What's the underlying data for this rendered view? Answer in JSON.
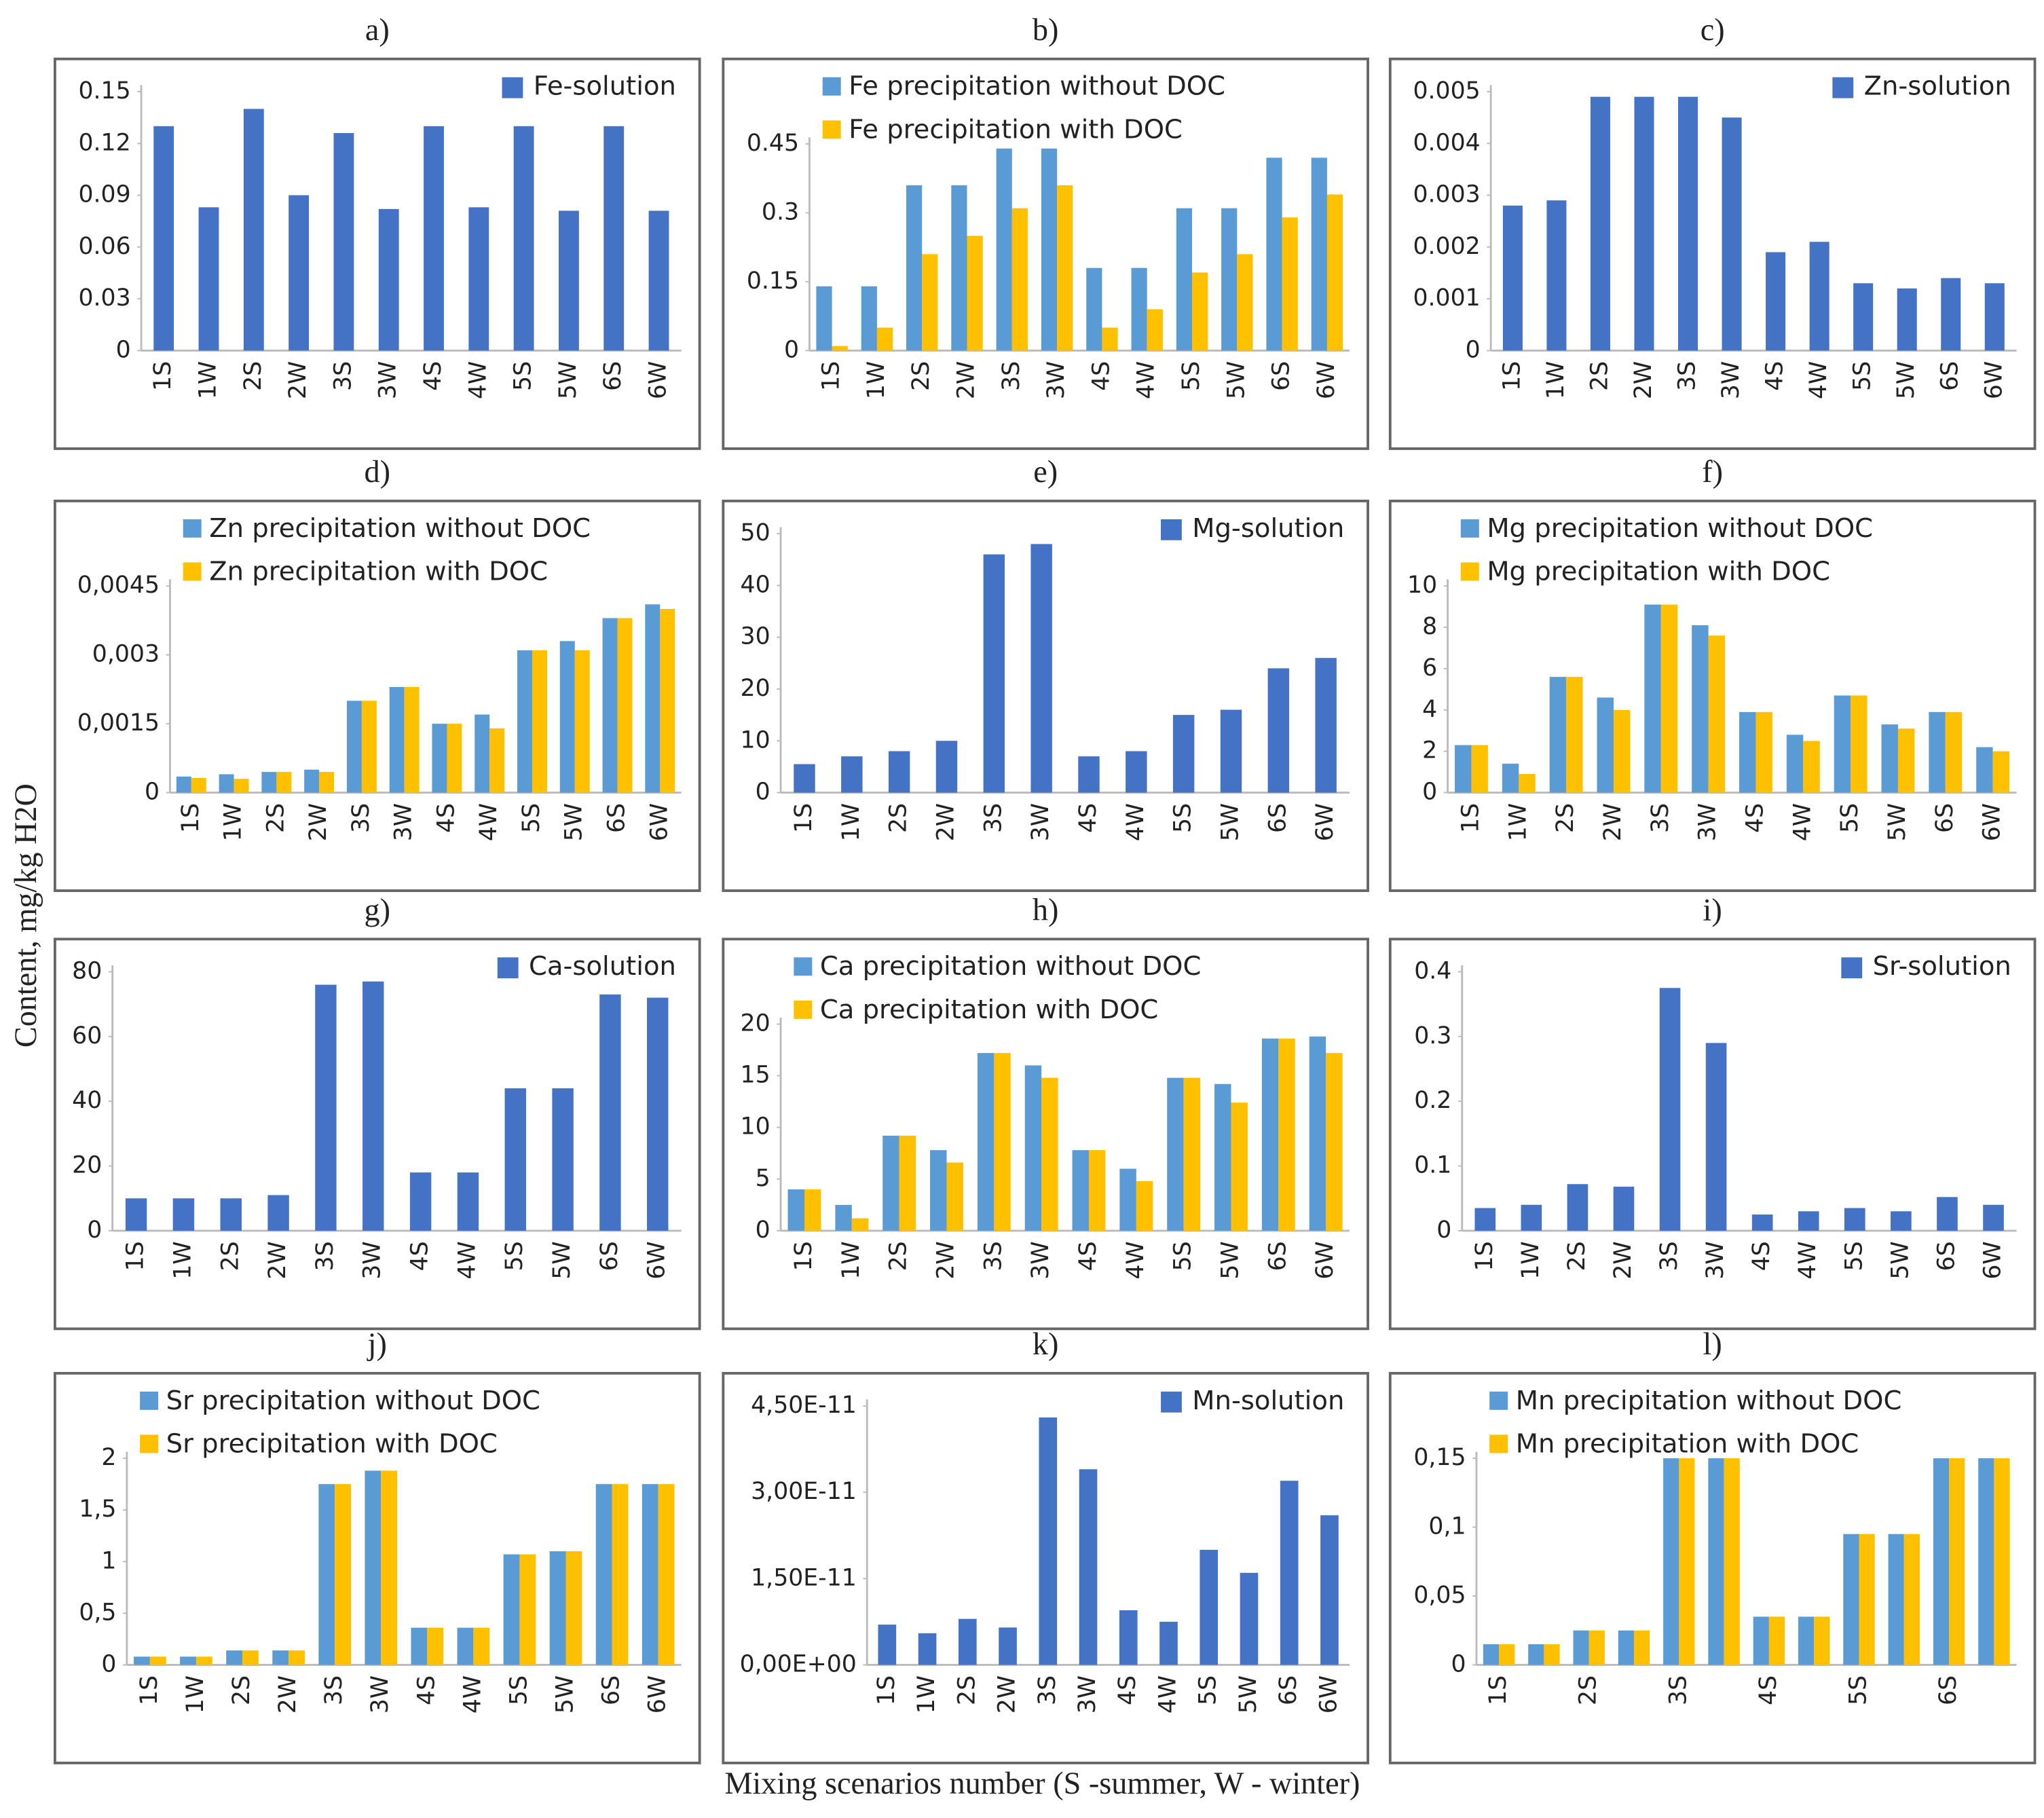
{
  "ylabel": "Content, mg/kg H2O",
  "xlabel": "Mixing scenarios number (S -summer, W - winter)",
  "chart_data": [
    {
      "type": "bar",
      "title": "a)",
      "categories": [
        "1S",
        "1W",
        "2S",
        "2W",
        "3S",
        "3W",
        "4S",
        "4W",
        "5S",
        "5W",
        "6S",
        "6W"
      ],
      "legend": "upper right",
      "series": [
        {
          "name": "Fe-solution",
          "color": "#4472c4",
          "values": [
            0.13,
            0.083,
            0.14,
            0.09,
            0.126,
            0.082,
            0.13,
            0.083,
            0.13,
            0.081,
            0.13,
            0.081
          ]
        }
      ],
      "ylim": [
        0,
        0.15
      ],
      "yticks": [
        0,
        0.03,
        0.06,
        0.09,
        0.12,
        0.15
      ]
    },
    {
      "type": "bar",
      "title": "b)",
      "categories": [
        "1S",
        "1W",
        "2S",
        "2W",
        "3S",
        "3W",
        "4S",
        "4W",
        "5S",
        "5W",
        "6S",
        "6W"
      ],
      "legend": "upper center",
      "series": [
        {
          "name": "Fe precipitation without DOC",
          "color": "#5b9bd5",
          "values": [
            0.14,
            0.14,
            0.36,
            0.36,
            0.44,
            0.44,
            0.18,
            0.18,
            0.31,
            0.31,
            0.42,
            0.42
          ]
        },
        {
          "name": "Fe precipitation with DOC",
          "color": "#ffc000",
          "values": [
            0.01,
            0.05,
            0.21,
            0.25,
            0.31,
            0.36,
            0.05,
            0.09,
            0.17,
            0.21,
            0.29,
            0.34
          ]
        }
      ],
      "ylim": [
        0,
        0.45
      ],
      "yticks": [
        0,
        0.15,
        0.3,
        0.45
      ]
    },
    {
      "type": "bar",
      "title": "c)",
      "categories": [
        "1S",
        "1W",
        "2S",
        "2W",
        "3S",
        "3W",
        "4S",
        "4W",
        "5S",
        "5W",
        "6S",
        "6W"
      ],
      "legend": "upper right",
      "series": [
        {
          "name": "Zn-solution",
          "color": "#4472c4",
          "values": [
            0.0028,
            0.0029,
            0.0049,
            0.0049,
            0.0049,
            0.0045,
            0.0019,
            0.0021,
            0.0013,
            0.0012,
            0.0014,
            0.0013
          ]
        }
      ],
      "ylim": [
        0,
        0.005
      ],
      "yticks": [
        0,
        0.001,
        0.002,
        0.003,
        0.004,
        0.005
      ]
    },
    {
      "type": "bar",
      "title": "d)",
      "categories": [
        "1S",
        "1W",
        "2S",
        "2W",
        "3S",
        "3W",
        "4S",
        "4W",
        "5S",
        "5W",
        "6S",
        "6W"
      ],
      "legend": "upper center",
      "series": [
        {
          "name": "Zn precipitation without DOC",
          "color": "#5b9bd5",
          "values": [
            0.00035,
            0.0004,
            0.00045,
            0.0005,
            0.002,
            0.0023,
            0.0015,
            0.0017,
            0.0031,
            0.0033,
            0.0038,
            0.0041
          ]
        },
        {
          "name": "Zn precipitation with DOC",
          "color": "#ffc000",
          "values": [
            0.00032,
            0.0003,
            0.00045,
            0.00045,
            0.002,
            0.0023,
            0.0015,
            0.0014,
            0.0031,
            0.0031,
            0.0038,
            0.004
          ]
        }
      ],
      "ylim": [
        0,
        0.0045
      ],
      "yticks": [
        0,
        {
          "value": 0.0015,
          "label": "0,0015"
        },
        {
          "value": 0.003,
          "label": "0,003"
        },
        {
          "value": 0.0045,
          "label": "0,0045"
        }
      ]
    },
    {
      "type": "bar",
      "title": "e)",
      "categories": [
        "1S",
        "1W",
        "2S",
        "2W",
        "3S",
        "3W",
        "4S",
        "4W",
        "5S",
        "5W",
        "6S",
        "6W"
      ],
      "legend": "upper right",
      "series": [
        {
          "name": "Mg-solution",
          "color": "#4472c4",
          "values": [
            5.5,
            7,
            8,
            10,
            46,
            48,
            7,
            8,
            15,
            16,
            24,
            26
          ]
        }
      ],
      "ylim": [
        0,
        50
      ],
      "yticks": [
        0,
        10,
        20,
        30,
        40,
        50
      ]
    },
    {
      "type": "bar",
      "title": "f)",
      "categories": [
        "1S",
        "1W",
        "2S",
        "2W",
        "3S",
        "3W",
        "4S",
        "4W",
        "5S",
        "5W",
        "6S",
        "6W"
      ],
      "legend": "upper center",
      "series": [
        {
          "name": "Mg precipitation without DOC",
          "color": "#5b9bd5",
          "values": [
            2.3,
            1.4,
            5.6,
            4.6,
            9.1,
            8.1,
            3.9,
            2.8,
            4.7,
            3.3,
            3.9,
            2.2
          ]
        },
        {
          "name": "Mg precipitation with DOC",
          "color": "#ffc000",
          "values": [
            2.3,
            0.9,
            5.6,
            4,
            9.1,
            7.6,
            3.9,
            2.5,
            4.7,
            3.1,
            3.9,
            2
          ]
        }
      ],
      "ylim": [
        0,
        10
      ],
      "yticks": [
        0,
        2,
        4,
        6,
        8,
        10
      ]
    },
    {
      "type": "bar",
      "title": "g)",
      "categories": [
        "1S",
        "1W",
        "2S",
        "2W",
        "3S",
        "3W",
        "4S",
        "4W",
        "5S",
        "5W",
        "6S",
        "6W"
      ],
      "legend": "upper right",
      "series": [
        {
          "name": "Ca-solution",
          "color": "#4472c4",
          "values": [
            10,
            10,
            10,
            11,
            76,
            77,
            18,
            18,
            44,
            44,
            73,
            72
          ]
        }
      ],
      "ylim": [
        0,
        80
      ],
      "yticks": [
        0,
        20,
        40,
        60,
        80
      ]
    },
    {
      "type": "bar",
      "title": "h)",
      "categories": [
        "1S",
        "1W",
        "2S",
        "2W",
        "3S",
        "3W",
        "4S",
        "4W",
        "5S",
        "5W",
        "6S",
        "6W"
      ],
      "legend": "upper center",
      "series": [
        {
          "name": "Ca precipitation without DOC",
          "color": "#5b9bd5",
          "values": [
            4,
            2.5,
            9.2,
            7.8,
            17.2,
            16,
            7.8,
            6,
            14.8,
            14.2,
            18.6,
            18.8
          ]
        },
        {
          "name": "Ca precipitation with DOC",
          "color": "#ffc000",
          "values": [
            4,
            1.2,
            9.2,
            6.6,
            17.2,
            14.8,
            7.8,
            4.8,
            14.8,
            12.4,
            18.6,
            17.2
          ]
        }
      ],
      "ylim": [
        0,
        20
      ],
      "yticks": [
        0,
        5,
        10,
        15,
        20
      ]
    },
    {
      "type": "bar",
      "title": "i)",
      "categories": [
        "1S",
        "1W",
        "2S",
        "2W",
        "3S",
        "3W",
        "4S",
        "4W",
        "5S",
        "5W",
        "6S",
        "6W"
      ],
      "legend": "upper right",
      "series": [
        {
          "name": "Sr-solution",
          "color": "#4472c4",
          "values": [
            0.035,
            0.04,
            0.072,
            0.068,
            0.375,
            0.29,
            0.025,
            0.03,
            0.035,
            0.03,
            0.052,
            0.04
          ]
        }
      ],
      "ylim": [
        0,
        0.4
      ],
      "yticks": [
        0,
        0.1,
        0.2,
        0.3,
        0.4
      ]
    },
    {
      "type": "bar",
      "title": "j)",
      "categories": [
        "1S",
        "1W",
        "2S",
        "2W",
        "3S",
        "3W",
        "4S",
        "4W",
        "5S",
        "5W",
        "6S",
        "6W"
      ],
      "legend": "upper center",
      "series": [
        {
          "name": "Sr precipitation without DOC",
          "color": "#5b9bd5",
          "values": [
            0.08,
            0.08,
            0.14,
            0.14,
            1.75,
            1.88,
            0.36,
            0.36,
            1.07,
            1.1,
            1.75,
            1.75
          ]
        },
        {
          "name": "Sr precipitation with DOC",
          "color": "#ffc000",
          "values": [
            0.08,
            0.08,
            0.14,
            0.14,
            1.75,
            1.88,
            0.36,
            0.36,
            1.07,
            1.1,
            1.75,
            1.75
          ]
        }
      ],
      "ylim": [
        0,
        2
      ],
      "yticks": [
        0,
        {
          "value": 0.5,
          "label": "0,5"
        },
        1,
        {
          "value": 1.5,
          "label": "1,5"
        },
        2
      ]
    },
    {
      "type": "bar",
      "title": "k)",
      "categories": [
        "1S",
        "1W",
        "2S",
        "2W",
        "3S",
        "3W",
        "4S",
        "4W",
        "5S",
        "5W",
        "6S",
        "6W"
      ],
      "legend": "upper right",
      "series": [
        {
          "name": "Mn-solution",
          "color": "#4472c4",
          "values": [
            7e-12,
            5.5e-12,
            8e-12,
            6.5e-12,
            4.3e-11,
            3.4e-11,
            9.5e-12,
            7.5e-12,
            2e-11,
            1.6e-11,
            3.2e-11,
            2.6e-11
          ]
        }
      ],
      "ylim": [
        0,
        4.5e-11
      ],
      "yticks": [
        {
          "value": 0,
          "label": "0,00E+00"
        },
        {
          "value": 1.5e-11,
          "label": "1,50E-11"
        },
        {
          "value": 3e-11,
          "label": "3,00E-11"
        },
        {
          "value": 4.5e-11,
          "label": "4,50E-11"
        }
      ]
    },
    {
      "type": "bar",
      "title": "l)",
      "categories": [
        "1S",
        null,
        "2S",
        null,
        "3S",
        null,
        "4S",
        null,
        "5S",
        null,
        "6S",
        null
      ],
      "legend": "upper center",
      "series": [
        {
          "name": "Mn precipitation without DOC",
          "color": "#5b9bd5",
          "values": [
            0.015,
            0.015,
            0.025,
            0.025,
            0.15,
            0.15,
            0.035,
            0.035,
            0.095,
            0.095,
            0.15,
            0.15
          ]
        },
        {
          "name": "Mn precipitation with DOC",
          "color": "#ffc000",
          "values": [
            0.015,
            0.015,
            0.025,
            0.025,
            0.15,
            0.15,
            0.035,
            0.035,
            0.095,
            0.095,
            0.15,
            0.15
          ]
        }
      ],
      "ylim": [
        0,
        0.15
      ],
      "yticks": [
        0,
        {
          "value": 0.05,
          "label": "0,05"
        },
        {
          "value": 0.1,
          "label": "0,1"
        },
        {
          "value": 0.15,
          "label": "0,15"
        }
      ]
    }
  ]
}
